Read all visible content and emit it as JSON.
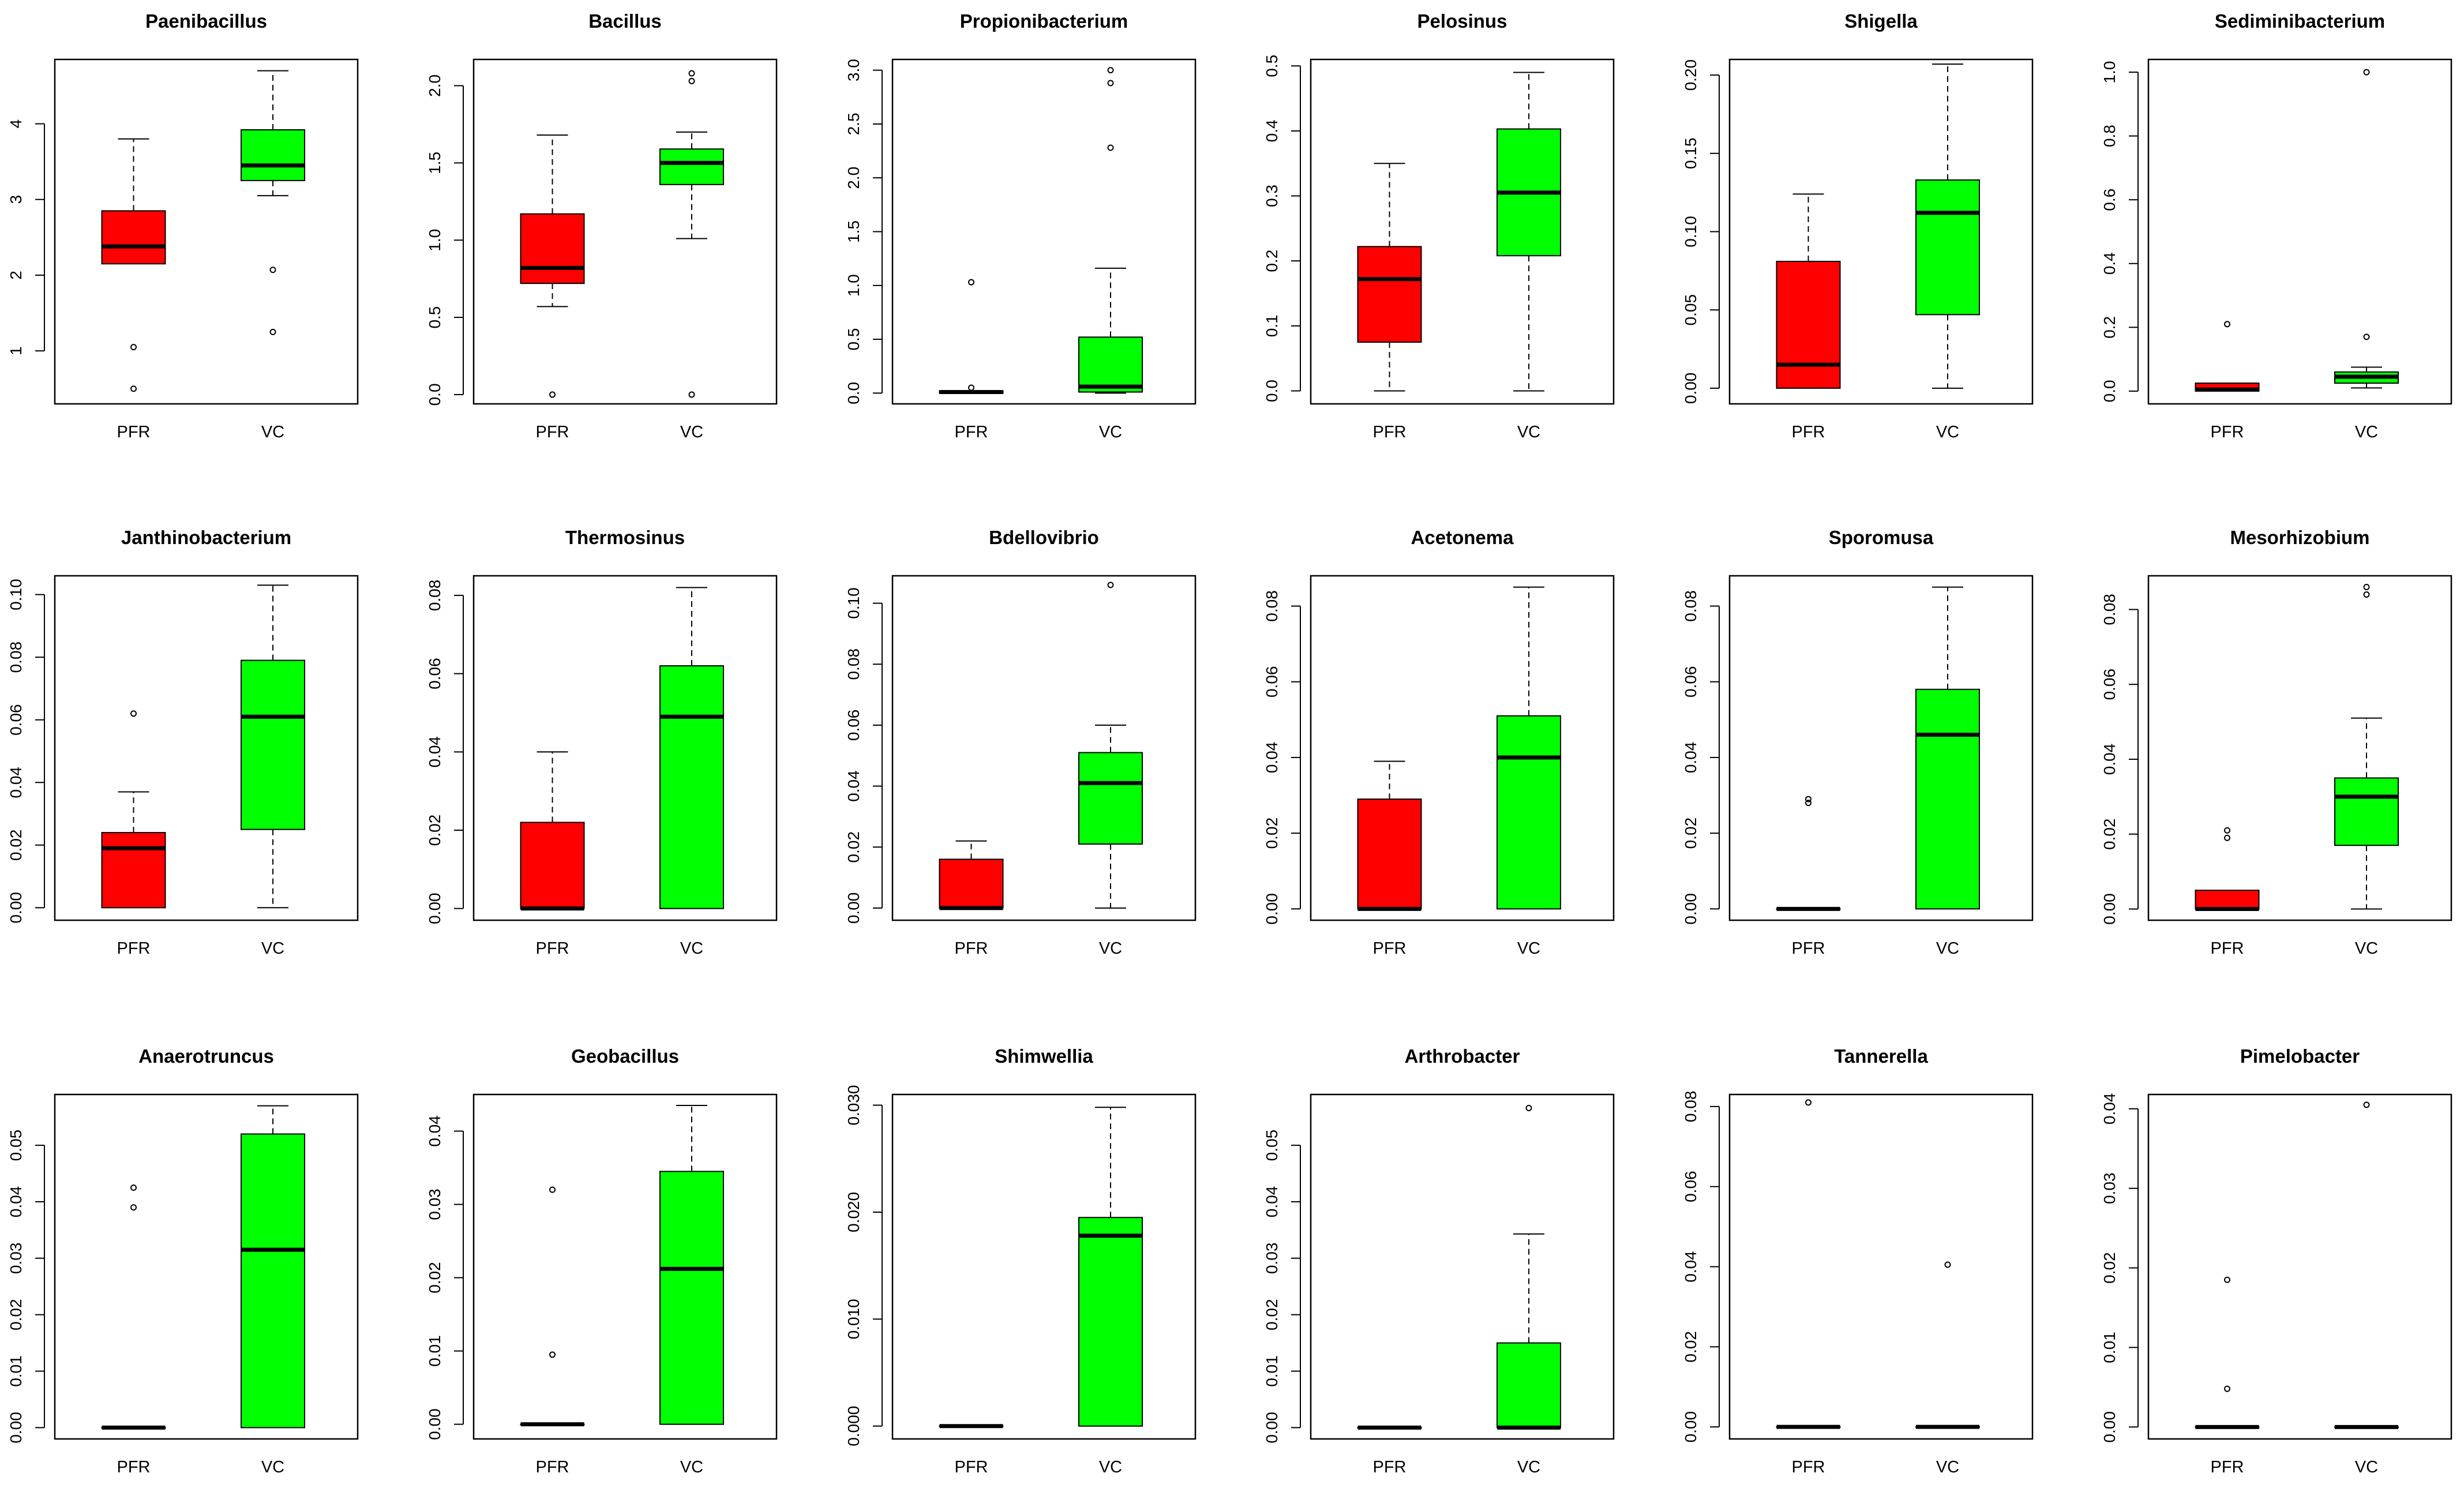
{
  "colors": {
    "PFR": "#ff0000",
    "VC": "#00ff00",
    "outline": "#000000",
    "background": "#ffffff"
  },
  "categories": [
    "PFR",
    "VC"
  ],
  "chart_data": [
    {
      "type": "box",
      "title": "Paenibacillus",
      "categories": [
        "PFR",
        "VC"
      ],
      "ylim": [
        0.3,
        4.85
      ],
      "yticks": [
        {
          "v": 1,
          "t": "1"
        },
        {
          "v": 2,
          "t": "2"
        },
        {
          "v": 3,
          "t": "3"
        },
        {
          "v": 4,
          "t": "4"
        }
      ],
      "boxes": [
        {
          "group": "PFR",
          "whisker_low": 2.15,
          "q1": 2.15,
          "median": 2.38,
          "q3": 2.85,
          "whisker_high": 3.8,
          "outliers": [
            1.05,
            0.5
          ]
        },
        {
          "group": "VC",
          "whisker_low": 3.05,
          "q1": 3.25,
          "median": 3.45,
          "q3": 3.92,
          "whisker_high": 4.7,
          "outliers": [
            2.07,
            1.25
          ]
        }
      ]
    },
    {
      "type": "box",
      "title": "Bacillus",
      "categories": [
        "PFR",
        "VC"
      ],
      "ylim": [
        -0.06,
        2.17
      ],
      "yticks": [
        {
          "v": 0,
          "t": "0.0"
        },
        {
          "v": 0.5,
          "t": "0.5"
        },
        {
          "v": 1,
          "t": "1.0"
        },
        {
          "v": 1.5,
          "t": "1.5"
        },
        {
          "v": 2,
          "t": "2.0"
        }
      ],
      "boxes": [
        {
          "group": "PFR",
          "whisker_low": 0.57,
          "q1": 0.72,
          "median": 0.82,
          "q3": 1.17,
          "whisker_high": 1.68,
          "outliers": [
            0.0
          ]
        },
        {
          "group": "VC",
          "whisker_low": 1.01,
          "q1": 1.36,
          "median": 1.5,
          "q3": 1.59,
          "whisker_high": 1.7,
          "outliers": [
            2.08,
            2.03,
            0.0
          ]
        }
      ]
    },
    {
      "type": "box",
      "title": "Propionibacterium",
      "categories": [
        "PFR",
        "VC"
      ],
      "ylim": [
        -0.1,
        3.1
      ],
      "yticks": [
        {
          "v": 0,
          "t": "0.0"
        },
        {
          "v": 0.5,
          "t": "0.5"
        },
        {
          "v": 1,
          "t": "1.0"
        },
        {
          "v": 1.5,
          "t": "1.5"
        },
        {
          "v": 2,
          "t": "2.0"
        },
        {
          "v": 2.5,
          "t": "2.5"
        },
        {
          "v": 3,
          "t": "3.0"
        }
      ],
      "boxes": [
        {
          "group": "PFR",
          "whisker_low": 0.0,
          "q1": 0.0,
          "median": 0.01,
          "q3": 0.02,
          "whisker_high": 0.02,
          "outliers": [
            1.03,
            0.05
          ]
        },
        {
          "group": "VC",
          "whisker_low": 0.0,
          "q1": 0.01,
          "median": 0.06,
          "q3": 0.52,
          "whisker_high": 1.16,
          "outliers": [
            3.0,
            2.88,
            2.28
          ]
        }
      ]
    },
    {
      "type": "box",
      "title": "Pelosinus",
      "categories": [
        "PFR",
        "VC"
      ],
      "ylim": [
        -0.02,
        0.51
      ],
      "yticks": [
        {
          "v": 0,
          "t": "0.0"
        },
        {
          "v": 0.1,
          "t": "0.1"
        },
        {
          "v": 0.2,
          "t": "0.2"
        },
        {
          "v": 0.3,
          "t": "0.3"
        },
        {
          "v": 0.4,
          "t": "0.4"
        },
        {
          "v": 0.5,
          "t": "0.5"
        }
      ],
      "boxes": [
        {
          "group": "PFR",
          "whisker_low": 0.0,
          "q1": 0.075,
          "median": 0.172,
          "q3": 0.222,
          "whisker_high": 0.35,
          "outliers": []
        },
        {
          "group": "VC",
          "whisker_low": 0.0,
          "q1": 0.208,
          "median": 0.305,
          "q3": 0.403,
          "whisker_high": 0.49,
          "outliers": []
        }
      ]
    },
    {
      "type": "box",
      "title": "Shigella",
      "categories": [
        "PFR",
        "VC"
      ],
      "ylim": [
        -0.01,
        0.21
      ],
      "yticks": [
        {
          "v": 0,
          "t": "0.00"
        },
        {
          "v": 0.05,
          "t": "0.05"
        },
        {
          "v": 0.1,
          "t": "0.10"
        },
        {
          "v": 0.15,
          "t": "0.15"
        },
        {
          "v": 0.2,
          "t": "0.20"
        }
      ],
      "boxes": [
        {
          "group": "PFR",
          "whisker_low": 0.0,
          "q1": 0.0,
          "median": 0.015,
          "q3": 0.081,
          "whisker_high": 0.124,
          "outliers": []
        },
        {
          "group": "VC",
          "whisker_low": 0.0,
          "q1": 0.047,
          "median": 0.112,
          "q3": 0.133,
          "whisker_high": 0.207,
          "outliers": []
        }
      ]
    },
    {
      "type": "box",
      "title": "Sediminibacterium",
      "categories": [
        "PFR",
        "VC"
      ],
      "ylim": [
        -0.04,
        1.04
      ],
      "yticks": [
        {
          "v": 0,
          "t": "0.0"
        },
        {
          "v": 0.2,
          "t": "0.2"
        },
        {
          "v": 0.4,
          "t": "0.4"
        },
        {
          "v": 0.6,
          "t": "0.6"
        },
        {
          "v": 0.8,
          "t": "0.8"
        },
        {
          "v": 1,
          "t": "1.0"
        }
      ],
      "boxes": [
        {
          "group": "PFR",
          "whisker_low": 0.0,
          "q1": 0.0,
          "median": 0.005,
          "q3": 0.025,
          "whisker_high": 0.025,
          "outliers": [
            0.21
          ]
        },
        {
          "group": "VC",
          "whisker_low": 0.01,
          "q1": 0.025,
          "median": 0.045,
          "q3": 0.06,
          "whisker_high": 0.075,
          "outliers": [
            1.0,
            0.17
          ]
        }
      ]
    },
    {
      "type": "box",
      "title": "Janthinobacterium",
      "categories": [
        "PFR",
        "VC"
      ],
      "ylim": [
        -0.004,
        0.106
      ],
      "yticks": [
        {
          "v": 0,
          "t": "0.00"
        },
        {
          "v": 0.02,
          "t": "0.02"
        },
        {
          "v": 0.04,
          "t": "0.04"
        },
        {
          "v": 0.06,
          "t": "0.06"
        },
        {
          "v": 0.08,
          "t": "0.08"
        },
        {
          "v": 0.1,
          "t": "0.10"
        }
      ],
      "boxes": [
        {
          "group": "PFR",
          "whisker_low": 0.0,
          "q1": 0.0,
          "median": 0.019,
          "q3": 0.024,
          "whisker_high": 0.037,
          "outliers": [
            0.062
          ]
        },
        {
          "group": "VC",
          "whisker_low": 0.0,
          "q1": 0.025,
          "median": 0.061,
          "q3": 0.079,
          "whisker_high": 0.103,
          "outliers": []
        }
      ]
    },
    {
      "type": "box",
      "title": "Thermosinus",
      "categories": [
        "PFR",
        "VC"
      ],
      "ylim": [
        -0.003,
        0.085
      ],
      "yticks": [
        {
          "v": 0,
          "t": "0.00"
        },
        {
          "v": 0.02,
          "t": "0.02"
        },
        {
          "v": 0.04,
          "t": "0.04"
        },
        {
          "v": 0.06,
          "t": "0.06"
        },
        {
          "v": 0.08,
          "t": "0.08"
        }
      ],
      "boxes": [
        {
          "group": "PFR",
          "whisker_low": 0.0,
          "q1": 0.0,
          "median": 0.0,
          "q3": 0.022,
          "whisker_high": 0.04,
          "outliers": []
        },
        {
          "group": "VC",
          "whisker_low": 0.0,
          "q1": 0.0,
          "median": 0.049,
          "q3": 0.062,
          "whisker_high": 0.082,
          "outliers": []
        }
      ]
    },
    {
      "type": "box",
      "title": "Bdellovibrio",
      "categories": [
        "PFR",
        "VC"
      ],
      "ylim": [
        -0.004,
        0.109
      ],
      "yticks": [
        {
          "v": 0,
          "t": "0.00"
        },
        {
          "v": 0.02,
          "t": "0.02"
        },
        {
          "v": 0.04,
          "t": "0.04"
        },
        {
          "v": 0.06,
          "t": "0.06"
        },
        {
          "v": 0.08,
          "t": "0.08"
        },
        {
          "v": 0.1,
          "t": "0.10"
        }
      ],
      "boxes": [
        {
          "group": "PFR",
          "whisker_low": 0.0,
          "q1": 0.0,
          "median": 0.0,
          "q3": 0.016,
          "whisker_high": 0.022,
          "outliers": []
        },
        {
          "group": "VC",
          "whisker_low": 0.0,
          "q1": 0.021,
          "median": 0.041,
          "q3": 0.051,
          "whisker_high": 0.06,
          "outliers": [
            0.106
          ]
        }
      ]
    },
    {
      "type": "box",
      "title": "Acetonema",
      "categories": [
        "PFR",
        "VC"
      ],
      "ylim": [
        -0.003,
        0.088
      ],
      "yticks": [
        {
          "v": 0,
          "t": "0.00"
        },
        {
          "v": 0.02,
          "t": "0.02"
        },
        {
          "v": 0.04,
          "t": "0.04"
        },
        {
          "v": 0.06,
          "t": "0.06"
        },
        {
          "v": 0.08,
          "t": "0.08"
        }
      ],
      "boxes": [
        {
          "group": "PFR",
          "whisker_low": 0.0,
          "q1": 0.0,
          "median": 0.0,
          "q3": 0.029,
          "whisker_high": 0.039,
          "outliers": []
        },
        {
          "group": "VC",
          "whisker_low": 0.0,
          "q1": 0.0,
          "median": 0.04,
          "q3": 0.051,
          "whisker_high": 0.085,
          "outliers": []
        }
      ]
    },
    {
      "type": "box",
      "title": "Sporomusa",
      "categories": [
        "PFR",
        "VC"
      ],
      "ylim": [
        -0.003,
        0.088
      ],
      "yticks": [
        {
          "v": 0,
          "t": "0.00"
        },
        {
          "v": 0.02,
          "t": "0.02"
        },
        {
          "v": 0.04,
          "t": "0.04"
        },
        {
          "v": 0.06,
          "t": "0.06"
        },
        {
          "v": 0.08,
          "t": "0.08"
        }
      ],
      "boxes": [
        {
          "group": "PFR",
          "whisker_low": 0.0,
          "q1": 0.0,
          "median": 0.0,
          "q3": 0.0,
          "whisker_high": 0.0,
          "outliers": [
            0.029,
            0.028
          ]
        },
        {
          "group": "VC",
          "whisker_low": 0.0,
          "q1": 0.0,
          "median": 0.046,
          "q3": 0.058,
          "whisker_high": 0.085,
          "outliers": []
        }
      ]
    },
    {
      "type": "box",
      "title": "Mesorhizobium",
      "categories": [
        "PFR",
        "VC"
      ],
      "ylim": [
        -0.003,
        0.089
      ],
      "yticks": [
        {
          "v": 0,
          "t": "0.00"
        },
        {
          "v": 0.02,
          "t": "0.02"
        },
        {
          "v": 0.04,
          "t": "0.04"
        },
        {
          "v": 0.06,
          "t": "0.06"
        },
        {
          "v": 0.08,
          "t": "0.08"
        }
      ],
      "boxes": [
        {
          "group": "PFR",
          "whisker_low": 0.0,
          "q1": 0.0,
          "median": 0.0,
          "q3": 0.005,
          "whisker_high": 0.005,
          "outliers": [
            0.021,
            0.019
          ]
        },
        {
          "group": "VC",
          "whisker_low": 0.0,
          "q1": 0.017,
          "median": 0.03,
          "q3": 0.035,
          "whisker_high": 0.051,
          "outliers": [
            0.086,
            0.084
          ]
        }
      ]
    },
    {
      "type": "box",
      "title": "Anaerotruncus",
      "categories": [
        "PFR",
        "VC"
      ],
      "ylim": [
        -0.002,
        0.059
      ],
      "yticks": [
        {
          "v": 0,
          "t": "0.00"
        },
        {
          "v": 0.01,
          "t": "0.01"
        },
        {
          "v": 0.02,
          "t": "0.02"
        },
        {
          "v": 0.03,
          "t": "0.03"
        },
        {
          "v": 0.04,
          "t": "0.04"
        },
        {
          "v": 0.05,
          "t": "0.05"
        }
      ],
      "boxes": [
        {
          "group": "PFR",
          "whisker_low": 0.0,
          "q1": 0.0,
          "median": 0.0,
          "q3": 0.0,
          "whisker_high": 0.0,
          "outliers": [
            0.0425,
            0.039
          ]
        },
        {
          "group": "VC",
          "whisker_low": 0.0,
          "q1": 0.0,
          "median": 0.0315,
          "q3": 0.052,
          "whisker_high": 0.057,
          "outliers": []
        }
      ]
    },
    {
      "type": "box",
      "title": "Geobacillus",
      "categories": [
        "PFR",
        "VC"
      ],
      "ylim": [
        -0.002,
        0.045
      ],
      "yticks": [
        {
          "v": 0,
          "t": "0.00"
        },
        {
          "v": 0.01,
          "t": "0.01"
        },
        {
          "v": 0.02,
          "t": "0.02"
        },
        {
          "v": 0.03,
          "t": "0.03"
        },
        {
          "v": 0.04,
          "t": "0.04"
        }
      ],
      "boxes": [
        {
          "group": "PFR",
          "whisker_low": 0.0,
          "q1": 0.0,
          "median": 0.0,
          "q3": 0.0,
          "whisker_high": 0.0,
          "outliers": [
            0.032,
            0.0095
          ]
        },
        {
          "group": "VC",
          "whisker_low": 0.0,
          "q1": 0.0,
          "median": 0.0212,
          "q3": 0.0345,
          "whisker_high": 0.0435,
          "outliers": []
        }
      ]
    },
    {
      "type": "box",
      "title": "Shimwellia",
      "categories": [
        "PFR",
        "VC"
      ],
      "ylim": [
        -0.0012,
        0.031
      ],
      "yticks": [
        {
          "v": 0,
          "t": "0.000"
        },
        {
          "v": 0.01,
          "t": "0.010"
        },
        {
          "v": 0.02,
          "t": "0.020"
        },
        {
          "v": 0.03,
          "t": "0.030"
        }
      ],
      "boxes": [
        {
          "group": "PFR",
          "whisker_low": 0.0,
          "q1": 0.0,
          "median": 0.0,
          "q3": 0.0,
          "whisker_high": 0.0,
          "outliers": []
        },
        {
          "group": "VC",
          "whisker_low": 0.0,
          "q1": 0.0,
          "median": 0.0178,
          "q3": 0.0195,
          "whisker_high": 0.0298,
          "outliers": []
        }
      ]
    },
    {
      "type": "box",
      "title": "Arthrobacter",
      "categories": [
        "PFR",
        "VC"
      ],
      "ylim": [
        -0.002,
        0.059
      ],
      "yticks": [
        {
          "v": 0,
          "t": "0.00"
        },
        {
          "v": 0.01,
          "t": "0.01"
        },
        {
          "v": 0.02,
          "t": "0.02"
        },
        {
          "v": 0.03,
          "t": "0.03"
        },
        {
          "v": 0.04,
          "t": "0.04"
        },
        {
          "v": 0.05,
          "t": "0.05"
        }
      ],
      "boxes": [
        {
          "group": "PFR",
          "whisker_low": 0.0,
          "q1": 0.0,
          "median": 0.0,
          "q3": 0.0,
          "whisker_high": 0.0,
          "outliers": []
        },
        {
          "group": "VC",
          "whisker_low": 0.0,
          "q1": 0.0,
          "median": 0.0,
          "q3": 0.015,
          "whisker_high": 0.0343,
          "outliers": [
            0.0566
          ]
        }
      ]
    },
    {
      "type": "box",
      "title": "Tannerella",
      "categories": [
        "PFR",
        "VC"
      ],
      "ylim": [
        -0.003,
        0.083
      ],
      "yticks": [
        {
          "v": 0,
          "t": "0.00"
        },
        {
          "v": 0.02,
          "t": "0.02"
        },
        {
          "v": 0.04,
          "t": "0.04"
        },
        {
          "v": 0.06,
          "t": "0.06"
        },
        {
          "v": 0.08,
          "t": "0.08"
        }
      ],
      "boxes": [
        {
          "group": "PFR",
          "whisker_low": 0.0,
          "q1": 0.0,
          "median": 0.0,
          "q3": 0.0,
          "whisker_high": 0.0,
          "outliers": [
            0.081
          ]
        },
        {
          "group": "VC",
          "whisker_low": 0.0,
          "q1": 0.0,
          "median": 0.0,
          "q3": 0.0,
          "whisker_high": 0.0,
          "outliers": [
            0.0405
          ]
        }
      ]
    },
    {
      "type": "box",
      "title": "Pimelobacter",
      "categories": [
        "PFR",
        "VC"
      ],
      "ylim": [
        -0.0015,
        0.0418
      ],
      "yticks": [
        {
          "v": 0,
          "t": "0.00"
        },
        {
          "v": 0.01,
          "t": "0.01"
        },
        {
          "v": 0.02,
          "t": "0.02"
        },
        {
          "v": 0.03,
          "t": "0.03"
        },
        {
          "v": 0.04,
          "t": "0.04"
        }
      ],
      "boxes": [
        {
          "group": "PFR",
          "whisker_low": 0.0,
          "q1": 0.0,
          "median": 0.0,
          "q3": 0.0,
          "whisker_high": 0.0,
          "outliers": [
            0.0185,
            0.0048
          ]
        },
        {
          "group": "VC",
          "whisker_low": 0.0,
          "q1": 0.0,
          "median": 0.0,
          "q3": 0.0,
          "whisker_high": 0.0,
          "outliers": [
            0.0405
          ]
        }
      ]
    }
  ]
}
